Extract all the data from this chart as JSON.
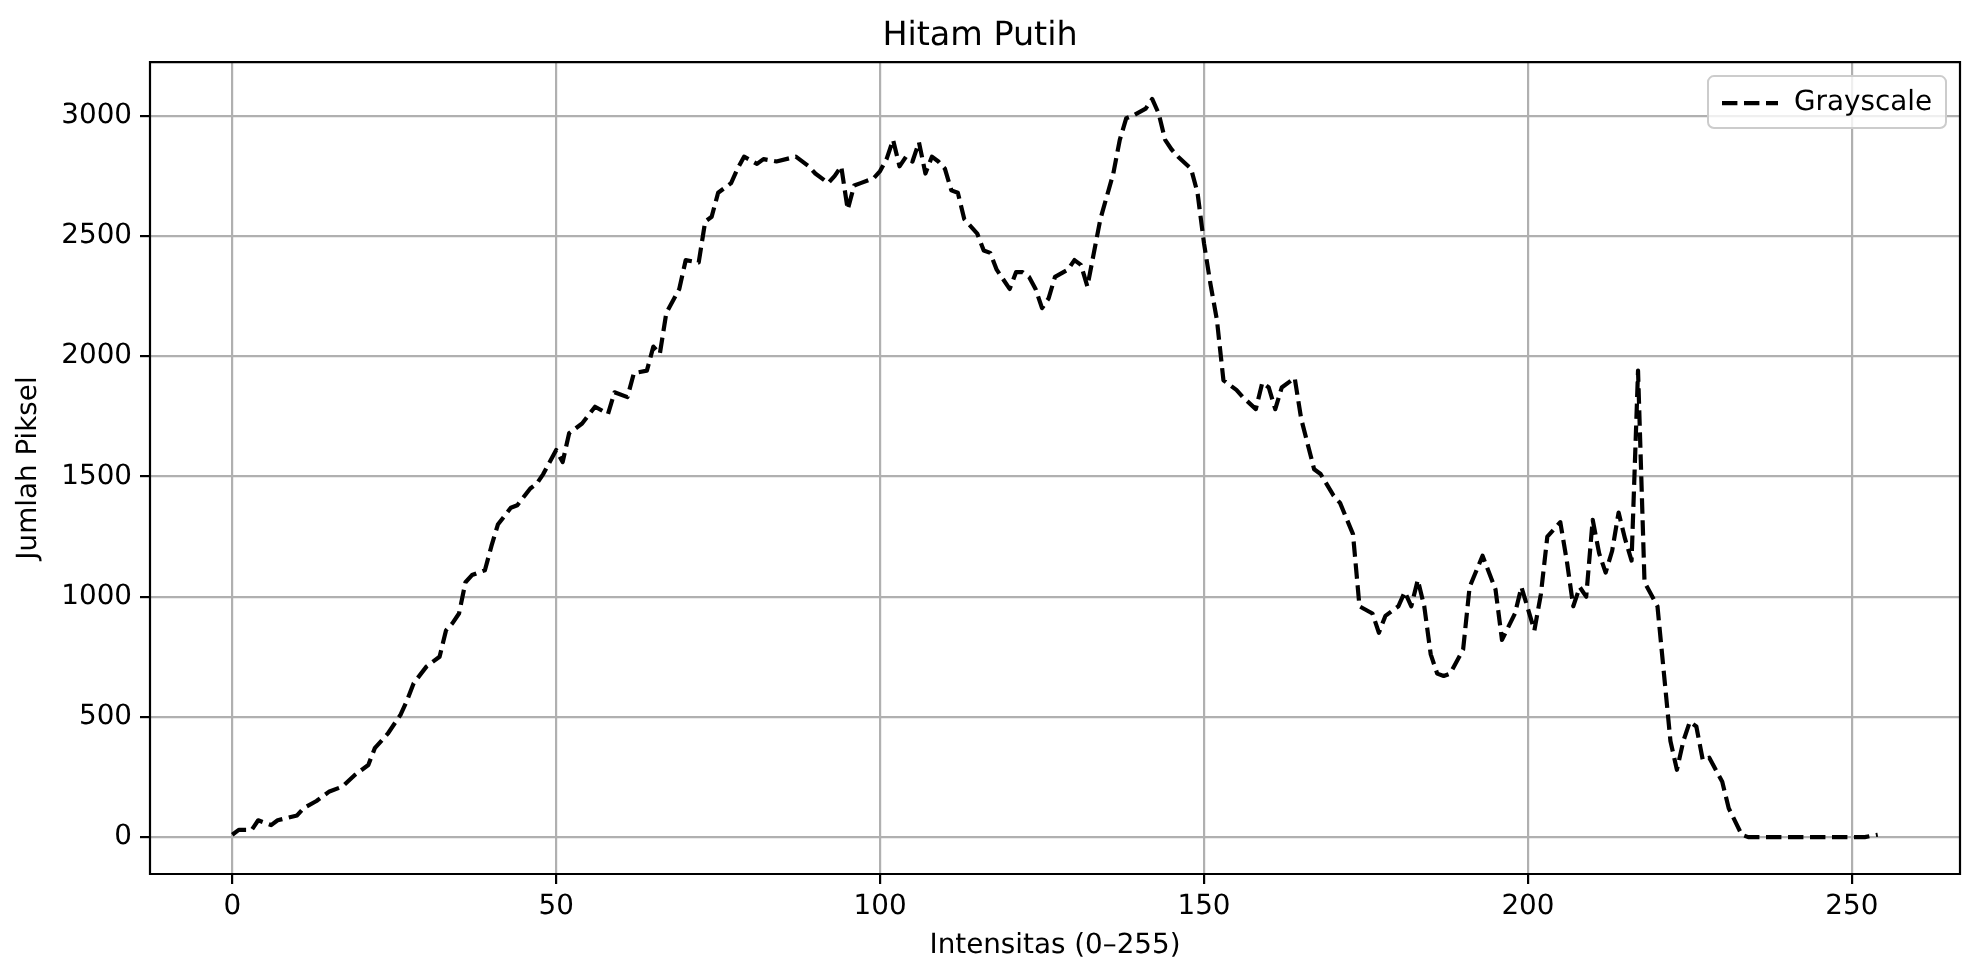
{
  "chart_data": {
    "type": "line",
    "title": "Hitam Putih",
    "xlabel": "Intensitas (0–255)",
    "ylabel": "Jumlah Piksel",
    "x": [
      0,
      1,
      3,
      4,
      6,
      7,
      10,
      11,
      13,
      15,
      17,
      19,
      21,
      22,
      24,
      26,
      27,
      28,
      30,
      32,
      33,
      34,
      35,
      36,
      37,
      39,
      40,
      41,
      43,
      44,
      46,
      47,
      48,
      50,
      51,
      52,
      54,
      56,
      58,
      59,
      61,
      62,
      64,
      65,
      66,
      67,
      69,
      70,
      72,
      73,
      74,
      75,
      77,
      78,
      79,
      81,
      82,
      84,
      87,
      89,
      90,
      92,
      93,
      94,
      95,
      96,
      97,
      99,
      100,
      101,
      102,
      103,
      104,
      105,
      106,
      107,
      108,
      109,
      110,
      111,
      112,
      113,
      115,
      116,
      117,
      118,
      120,
      121,
      122,
      123,
      124,
      125,
      126,
      127,
      129,
      130,
      131,
      132,
      133,
      134,
      136,
      137,
      138,
      139,
      141,
      142,
      143,
      144,
      145,
      146,
      148,
      149,
      150,
      151,
      152,
      153,
      155,
      156,
      158,
      159,
      160,
      161,
      162,
      164,
      165,
      167,
      168,
      170,
      171,
      173,
      174,
      176,
      177,
      178,
      180,
      181,
      182,
      183,
      184,
      185,
      186,
      187,
      188,
      190,
      191,
      193,
      195,
      196,
      198,
      199,
      201,
      202,
      203,
      205,
      206,
      207,
      208,
      209,
      210,
      211,
      212,
      213,
      214,
      215,
      216,
      217,
      218,
      220,
      221,
      222,
      223,
      224,
      225,
      226,
      227,
      228,
      230,
      231,
      233,
      234,
      252,
      254
    ],
    "series": [
      {
        "name": "Grayscale",
        "color": "#000000",
        "values": [
          10,
          30,
          30,
          70,
          50,
          70,
          90,
          120,
          150,
          190,
          210,
          260,
          300,
          370,
          430,
          510,
          570,
          640,
          710,
          750,
          860,
          890,
          930,
          1060,
          1090,
          1110,
          1210,
          1300,
          1370,
          1380,
          1450,
          1470,
          1510,
          1610,
          1560,
          1680,
          1720,
          1790,
          1760,
          1850,
          1830,
          1930,
          1940,
          2040,
          2010,
          2180,
          2280,
          2400,
          2390,
          2560,
          2580,
          2680,
          2720,
          2780,
          2830,
          2800,
          2820,
          2810,
          2830,
          2790,
          2760,
          2720,
          2750,
          2790,
          2610,
          2710,
          2720,
          2740,
          2770,
          2820,
          2900,
          2790,
          2830,
          2810,
          2890,
          2760,
          2830,
          2810,
          2780,
          2690,
          2680,
          2570,
          2510,
          2440,
          2430,
          2360,
          2280,
          2350,
          2350,
          2330,
          2280,
          2200,
          2240,
          2330,
          2360,
          2400,
          2380,
          2290,
          2430,
          2570,
          2760,
          2900,
          2990,
          3000,
          3030,
          3070,
          3010,
          2900,
          2860,
          2830,
          2780,
          2680,
          2470,
          2300,
          2150,
          1900,
          1860,
          1830,
          1780,
          1890,
          1870,
          1780,
          1870,
          1910,
          1740,
          1530,
          1510,
          1420,
          1390,
          1260,
          960,
          930,
          850,
          920,
          960,
          1020,
          960,
          1070,
          960,
          760,
          680,
          670,
          680,
          780,
          1040,
          1170,
          1030,
          820,
          930,
          1040,
          860,
          1010,
          1250,
          1310,
          1150,
          960,
          1040,
          1000,
          1320,
          1180,
          1100,
          1190,
          1350,
          1240,
          1150,
          1940,
          1060,
          960,
          680,
          400,
          280,
          400,
          480,
          460,
          320,
          330,
          230,
          120,
          10,
          0,
          0,
          10
        ]
      }
    ],
    "xlim": [
      -12.7,
      266.7
    ],
    "ylim": [
      -153.5,
      3223.5
    ],
    "xticks": [
      0,
      50,
      100,
      150,
      200,
      250
    ],
    "yticks": [
      0,
      500,
      1000,
      1500,
      2000,
      2500,
      3000
    ],
    "grid": true,
    "legend": "top right",
    "line_style": "dashed"
  }
}
